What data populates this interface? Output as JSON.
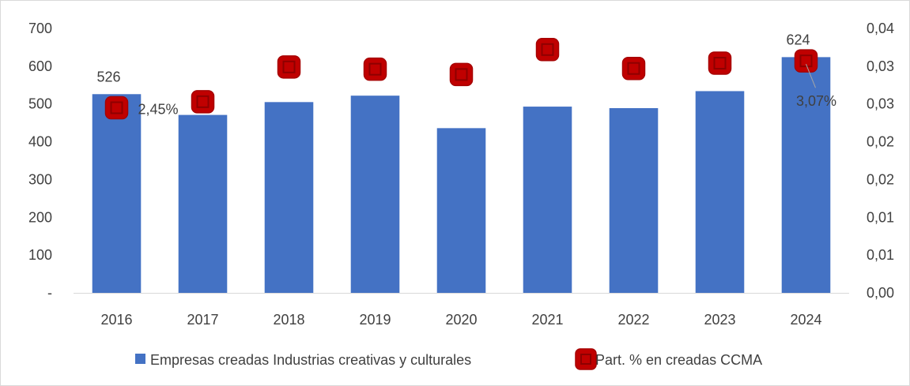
{
  "chart_data": {
    "type": "bar",
    "categories": [
      "2016",
      "2017",
      "2018",
      "2019",
      "2020",
      "2021",
      "2022",
      "2023",
      "2024"
    ],
    "series": [
      {
        "name": "Empresas creadas Industrias creativas y culturales",
        "kind": "bar",
        "axis": "left",
        "color": "#4472C4",
        "values": [
          526,
          471,
          505,
          522,
          436,
          493,
          489,
          534,
          624
        ]
      },
      {
        "name": "Part. % en creadas CCMA",
        "kind": "marker",
        "axis": "right",
        "color": "#C00000",
        "values": [
          0.0245,
          0.0253,
          0.0299,
          0.0296,
          0.0289,
          0.0322,
          0.0297,
          0.0304,
          0.0307
        ]
      }
    ],
    "data_labels": [
      {
        "series": 0,
        "index": 0,
        "text": "526"
      },
      {
        "series": 0,
        "index": 8,
        "text": "624"
      },
      {
        "series": 1,
        "index": 0,
        "text": "2,45%"
      },
      {
        "series": 1,
        "index": 8,
        "text": "3,07%"
      }
    ],
    "y_left": {
      "ylim": [
        0,
        700
      ],
      "ticks": [
        0,
        100,
        200,
        300,
        400,
        500,
        600,
        700
      ],
      "tick_labels": [
        "-",
        "100",
        "200",
        "300",
        "400",
        "500",
        "600",
        "700"
      ]
    },
    "y_right": {
      "ylim": [
        0,
        0.035
      ],
      "ticks": [
        0,
        0.005,
        0.01,
        0.015,
        0.02,
        0.025,
        0.03,
        0.035
      ],
      "tick_labels": [
        "0,00",
        "0,01",
        "0,01",
        "0,02",
        "0,02",
        "0,03",
        "0,03",
        "0,04"
      ]
    },
    "grid": false,
    "legend_position": "bottom"
  }
}
